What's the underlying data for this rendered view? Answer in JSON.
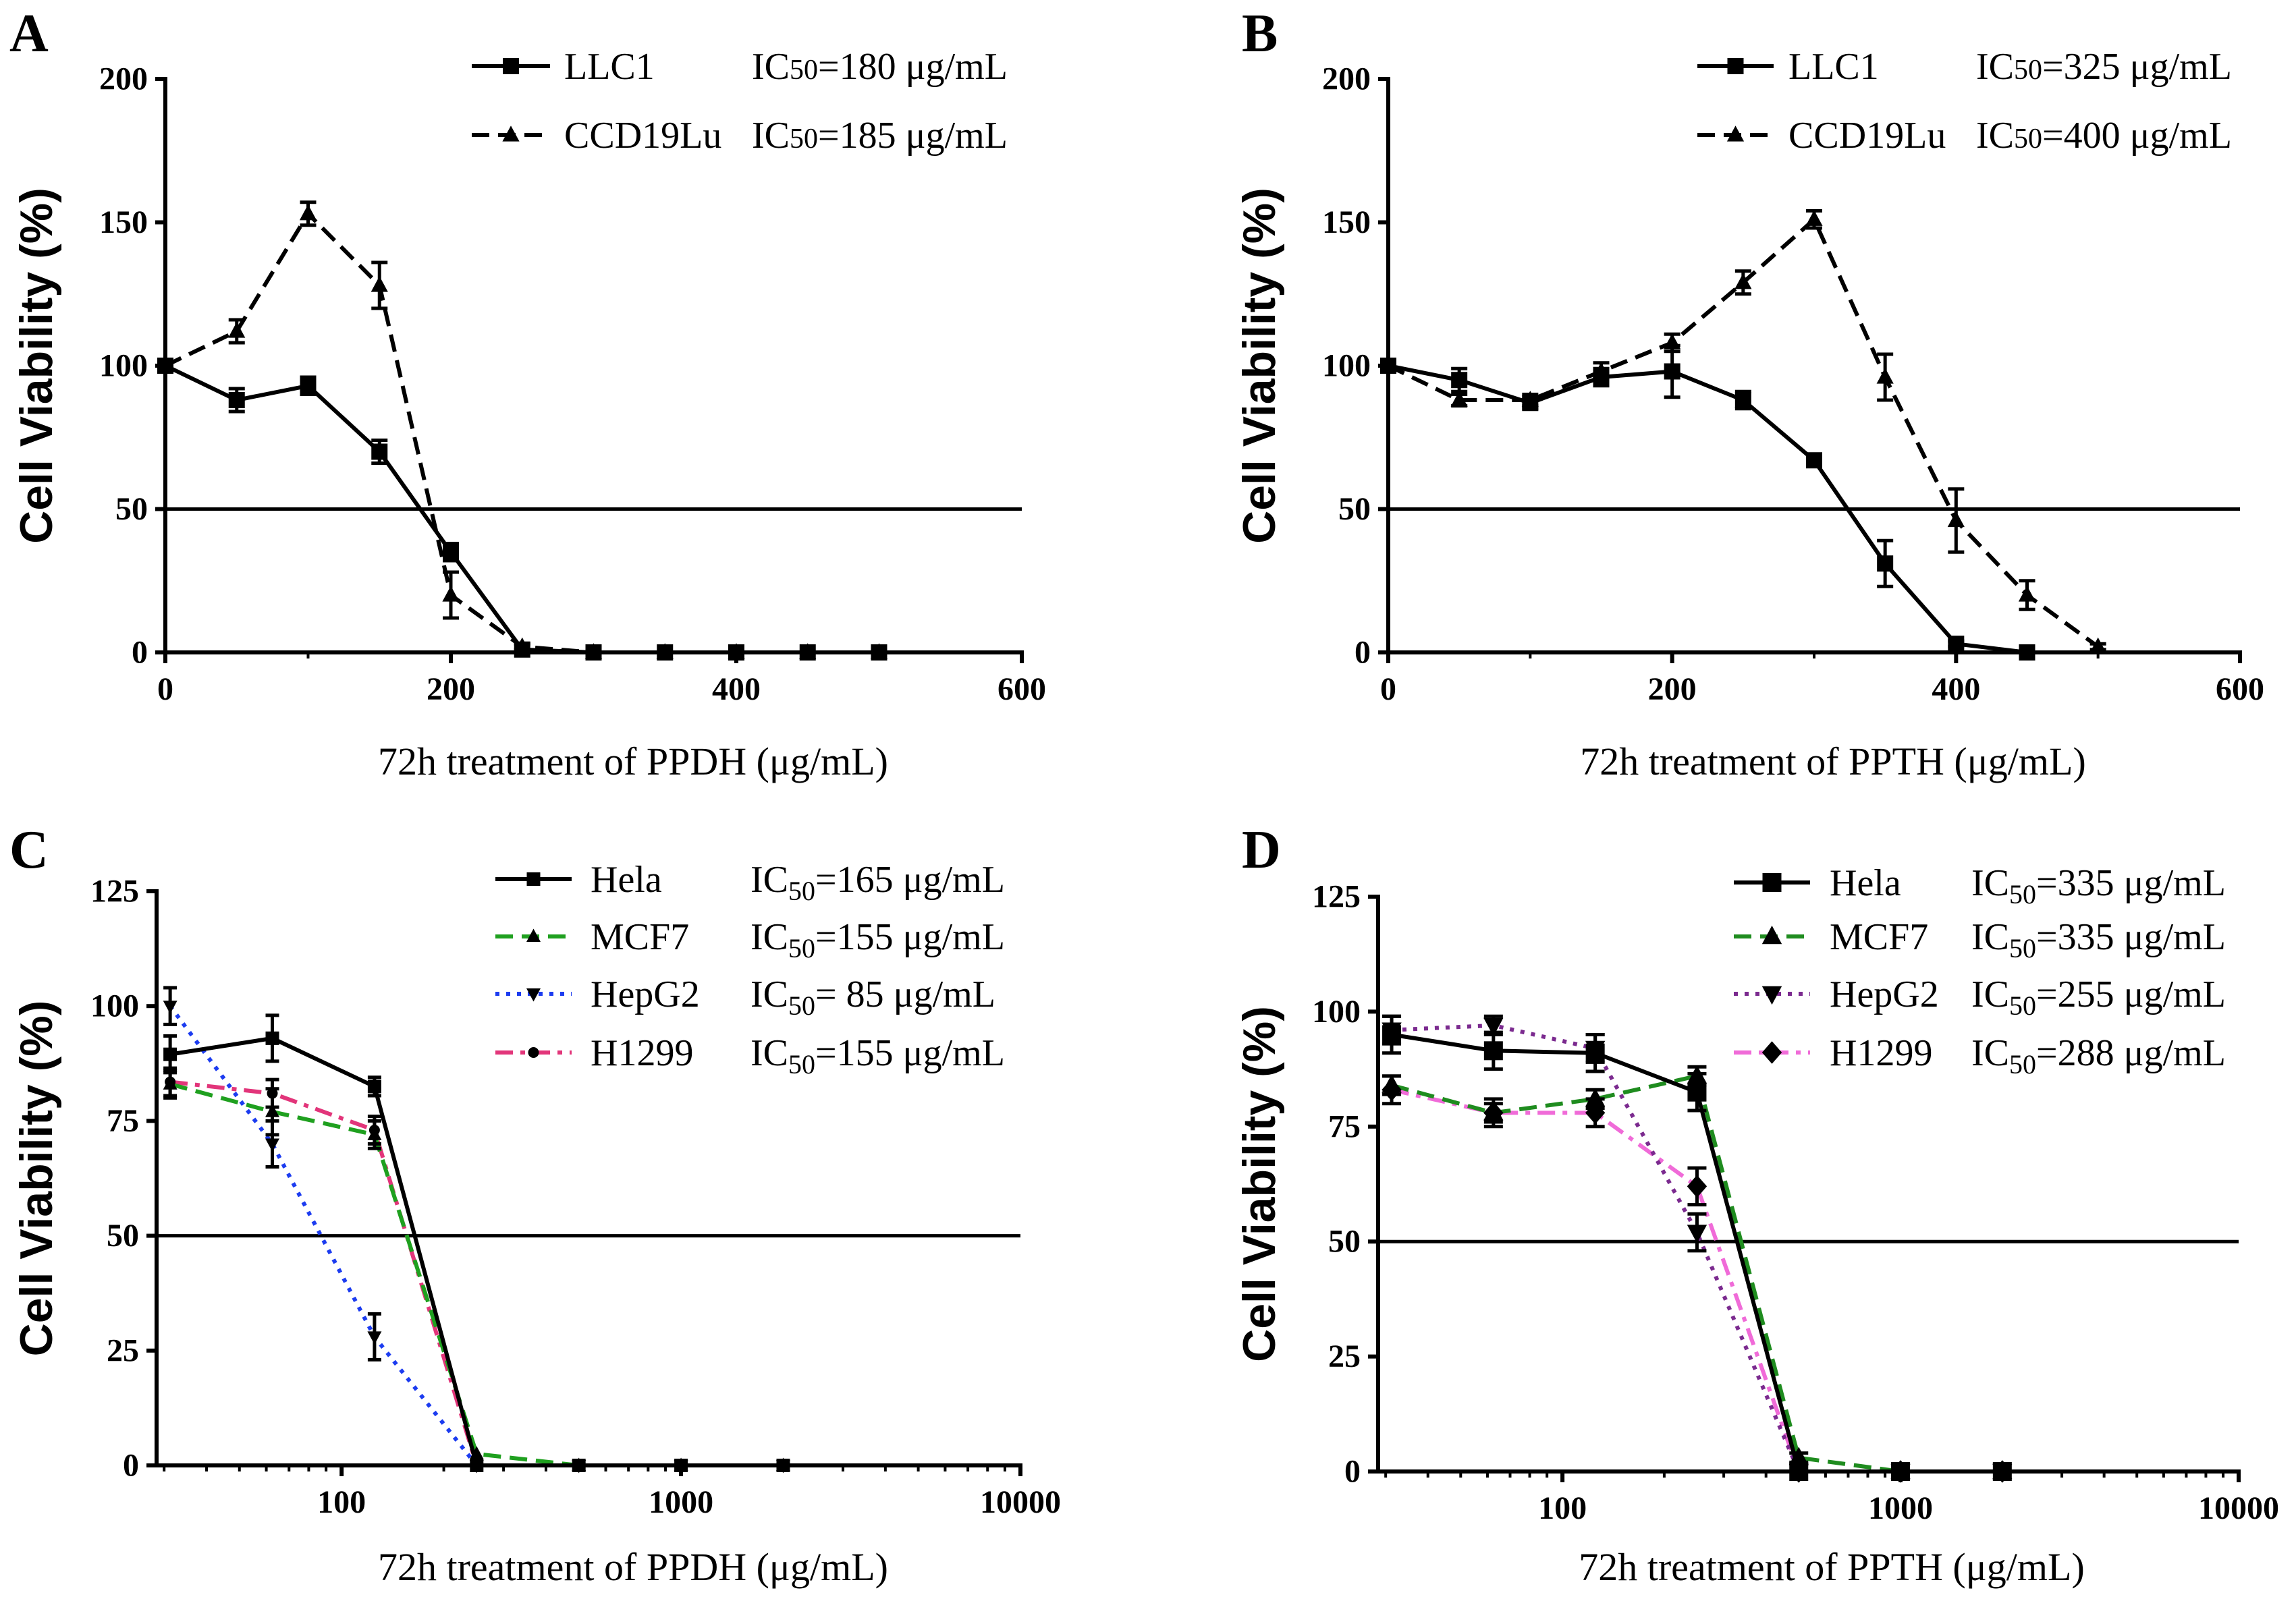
{
  "chart_data": [
    {
      "panel": "A",
      "type": "line",
      "xlabel": "72h treatment of PPDH (μg/mL)",
      "ylabel": "Cell Viability (%)",
      "xscale": "linear",
      "xlim": [
        0,
        600
      ],
      "ylim": [
        0,
        200
      ],
      "x_ticks": [
        0,
        200,
        400,
        600
      ],
      "y_ticks": [
        0,
        50,
        100,
        150,
        200
      ],
      "reference_line_y": 50,
      "grid": false,
      "legend_position": "top-right",
      "series": [
        {
          "name": "LLC1",
          "ic50_label": {
            "prefix": "IC",
            "sub": "50",
            "value": "=180 μg/mL"
          },
          "color": "#000000",
          "line_style": "solid",
          "marker": "square",
          "x": [
            0,
            50,
            100,
            150,
            200,
            250,
            300,
            350,
            400,
            450,
            500
          ],
          "y": [
            100,
            88,
            93,
            70,
            35,
            1,
            0,
            0,
            0,
            0,
            0
          ],
          "err": [
            0,
            4,
            3,
            4,
            3,
            0,
            0,
            0,
            0,
            0,
            0
          ]
        },
        {
          "name": "CCD19Lu",
          "ic50_label": {
            "prefix": "IC",
            "sub": "50",
            "value": "=185 μg/mL"
          },
          "color": "#000000",
          "line_style": "dashed",
          "marker": "triangle-up",
          "x": [
            0,
            50,
            100,
            150,
            200,
            250,
            300,
            350,
            400,
            450,
            500
          ],
          "y": [
            100,
            112,
            153,
            128,
            20,
            2,
            0,
            0,
            0,
            0,
            0
          ],
          "err": [
            0,
            4,
            4,
            8,
            8,
            1,
            0,
            0,
            0,
            0,
            0
          ]
        }
      ]
    },
    {
      "panel": "B",
      "type": "line",
      "xlabel": "72h treatment of PPTH (μg/mL)",
      "ylabel": "Cell Viability (%)",
      "xscale": "linear",
      "xlim": [
        0,
        600
      ],
      "ylim": [
        0,
        200
      ],
      "x_ticks": [
        0,
        200,
        400,
        600
      ],
      "y_ticks": [
        0,
        50,
        100,
        150,
        200
      ],
      "reference_line_y": 50,
      "grid": false,
      "legend_position": "top-right",
      "series": [
        {
          "name": "LLC1",
          "ic50_label": {
            "prefix": "IC",
            "sub": "50",
            "value": "=325 μg/mL"
          },
          "color": "#000000",
          "line_style": "solid",
          "marker": "square",
          "x": [
            0,
            50,
            100,
            150,
            200,
            250,
            300,
            350,
            400,
            450
          ],
          "y": [
            100,
            95,
            87,
            96,
            98,
            88,
            67,
            31,
            3,
            0
          ],
          "err": [
            0,
            4,
            2,
            3,
            9,
            3,
            1,
            8,
            1,
            0
          ]
        },
        {
          "name": "CCD19Lu",
          "ic50_label": {
            "prefix": "IC",
            "sub": "50",
            "value": "=400 μg/mL"
          },
          "color": "#000000",
          "line_style": "dashed",
          "marker": "triangle-up",
          "x": [
            0,
            50,
            100,
            150,
            200,
            250,
            300,
            350,
            400,
            450,
            500
          ],
          "y": [
            100,
            88,
            88,
            98,
            108,
            129,
            151,
            96,
            46,
            20,
            2
          ],
          "err": [
            0,
            2,
            2,
            3,
            3,
            4,
            3,
            8,
            11,
            5,
            1
          ]
        }
      ]
    },
    {
      "panel": "C",
      "type": "line",
      "xlabel": "72h treatment of PPDH (μg/mL)",
      "ylabel": "Cell Viability (%)",
      "xscale": "log",
      "xlim": [
        28.5,
        10000
      ],
      "ylim": [
        0,
        125
      ],
      "x_ticks": [
        100,
        1000,
        10000
      ],
      "y_ticks": [
        0,
        25,
        50,
        75,
        100,
        125
      ],
      "reference_line_y": 50,
      "grid": false,
      "legend_position": "top-right",
      "series": [
        {
          "name": "Hela",
          "ic50_label": {
            "prefix": "IC",
            "sub": "50",
            "value": "=165 μg/mL"
          },
          "color": "#000000",
          "line_style": "solid",
          "marker": "square",
          "x": [
            31.25,
            62.5,
            125,
            250,
            500,
            1000,
            2000
          ],
          "y": [
            89.5,
            93,
            82.5,
            0,
            0,
            0,
            0
          ],
          "err": [
            4,
            5,
            2,
            0,
            0,
            0,
            0
          ]
        },
        {
          "name": "MCF7",
          "ic50_label": {
            "prefix": "IC",
            "sub": "50",
            "value": "=155 μg/mL"
          },
          "color": "#1fa01f",
          "line_style": "dashed",
          "marker": "triangle-up",
          "x": [
            31.25,
            62.5,
            125,
            250,
            500,
            1000,
            2000
          ],
          "y": [
            83,
            77,
            72,
            2.5,
            0,
            0,
            0
          ],
          "err": [
            3,
            5,
            3,
            0,
            0,
            0,
            0
          ]
        },
        {
          "name": "HepG2",
          "ic50_label": {
            "prefix": "IC",
            "sub": "50",
            "value": "= 85 μg/mL"
          },
          "color": "#1c3cf0",
          "line_style": "dotted",
          "marker": "triangle-down",
          "x": [
            31.25,
            62.5,
            125,
            250,
            500,
            1000,
            2000
          ],
          "y": [
            100,
            70,
            28,
            0,
            0,
            0,
            0
          ],
          "err": [
            4,
            5,
            5,
            0,
            0,
            0,
            0
          ]
        },
        {
          "name": "H1299",
          "ic50_label": {
            "prefix": "IC",
            "sub": "50",
            "value": "=155 μg/mL"
          },
          "color": "#e2357a",
          "line_style": "dashdot",
          "marker": "circle",
          "x": [
            31.25,
            62.5,
            125,
            250,
            500,
            1000,
            2000
          ],
          "y": [
            83.5,
            81,
            73,
            0,
            0,
            0,
            0
          ],
          "err": [
            3,
            3,
            3,
            0,
            0,
            0,
            0
          ]
        }
      ]
    },
    {
      "panel": "D",
      "type": "line",
      "xlabel": "72h treatment of PPTH (μg/mL)",
      "ylabel": "Cell Viability (%)",
      "xscale": "log",
      "xlim": [
        28.5,
        10000
      ],
      "ylim": [
        0,
        125
      ],
      "x_ticks": [
        100,
        1000,
        10000
      ],
      "y_ticks": [
        0,
        25,
        50,
        75,
        100,
        125
      ],
      "reference_line_y": 50,
      "grid": false,
      "legend_position": "top-right",
      "series": [
        {
          "name": "Hela",
          "ic50_label": {
            "prefix": "IC",
            "sub": "50",
            "value": "=335 μg/mL"
          },
          "color": "#000000",
          "line_style": "solid",
          "marker": "square",
          "x": [
            31.25,
            62.5,
            125,
            250,
            500,
            1000,
            2000
          ],
          "y": [
            95,
            91.5,
            91,
            82.5,
            0,
            0,
            0
          ],
          "err": [
            4,
            4,
            4,
            4,
            0,
            0,
            0
          ]
        },
        {
          "name": "MCF7",
          "ic50_label": {
            "prefix": "IC",
            "sub": "50",
            "value": "=335 μg/mL"
          },
          "color": "#1f8c1f",
          "line_style": "dashed",
          "marker": "triangle-up",
          "x": [
            31.25,
            62.5,
            125,
            250,
            500,
            1000,
            2000
          ],
          "y": [
            84,
            78,
            81,
            86,
            3,
            0,
            0
          ],
          "err": [
            2,
            2,
            2,
            2,
            1,
            0,
            0
          ]
        },
        {
          "name": "HepG2",
          "ic50_label": {
            "prefix": "IC",
            "sub": "50",
            "value": "=255 μg/mL"
          },
          "color": "#7b2a8f",
          "line_style": "dotted",
          "marker": "triangle-down",
          "x": [
            31.25,
            62.5,
            125,
            250,
            500,
            1000,
            2000
          ],
          "y": [
            96,
            97,
            92,
            52,
            0,
            0,
            0
          ],
          "err": [
            3,
            2,
            3,
            4,
            0,
            0,
            0
          ]
        },
        {
          "name": "H1299",
          "ic50_label": {
            "prefix": "IC",
            "sub": "50",
            "value": "=288 μg/mL"
          },
          "color": "#f06bd8",
          "line_style": "dashdot",
          "marker": "diamond",
          "x": [
            31.25,
            62.5,
            125,
            250,
            500,
            1000,
            2000
          ],
          "y": [
            83,
            78,
            78,
            62,
            0,
            0,
            0
          ],
          "err": [
            3,
            3,
            3,
            4,
            0,
            0,
            0
          ]
        }
      ]
    }
  ]
}
